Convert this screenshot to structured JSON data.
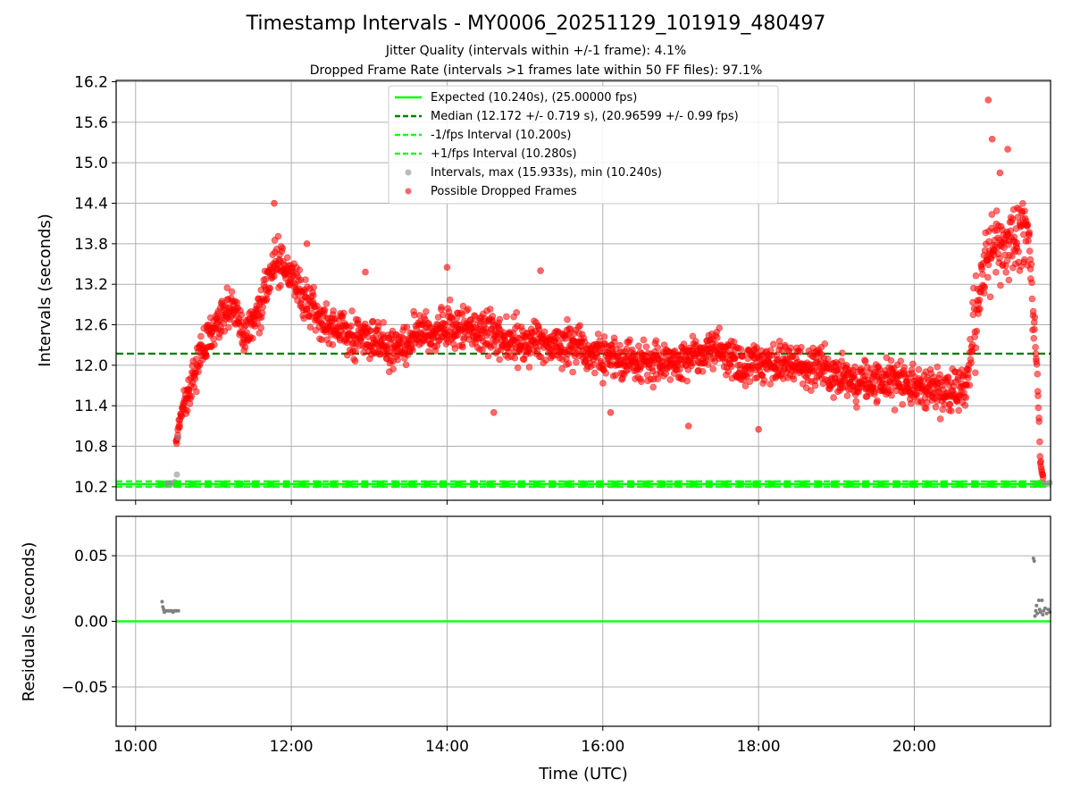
{
  "chart_data": [
    {
      "type": "scatter",
      "title": "Timestamp Intervals - MY0006_20251129_101919_480497",
      "subtitle_lines": [
        "Jitter Quality (intervals within +/-1 frame): 4.1%",
        "Dropped Frame Rate (intervals >1 frames late within 50 FF files): 97.1%"
      ],
      "ylabel": "Intervals (seconds)",
      "ylim": [
        10.0,
        16.22
      ],
      "xlim_hours": [
        9.75,
        21.75
      ],
      "yticks": [
        10.2,
        10.8,
        11.4,
        12.0,
        12.6,
        13.2,
        13.8,
        14.4,
        15.0,
        15.6,
        16.2
      ],
      "ytick_labels": [
        "10.2",
        "10.8",
        "11.4",
        "12.0",
        "12.6",
        "13.2",
        "13.8",
        "14.4",
        "15.0",
        "15.6",
        "16.2"
      ],
      "grid": true,
      "reference_lines": {
        "expected": 10.24,
        "median": 12.172,
        "minus_fps": 10.2,
        "plus_fps": 10.28
      },
      "intervals_normal": [
        {
          "x": 10.33,
          "y": 10.24
        },
        {
          "x": 10.38,
          "y": 10.24
        },
        {
          "x": 10.42,
          "y": 10.25
        },
        {
          "x": 10.46,
          "y": 10.25
        },
        {
          "x": 10.5,
          "y": 10.27
        },
        {
          "x": 10.53,
          "y": 10.38
        },
        {
          "x": 10.55,
          "y": 10.93
        },
        {
          "x": 21.55,
          "y": 10.24
        },
        {
          "x": 21.6,
          "y": 10.26
        },
        {
          "x": 21.65,
          "y": 10.25
        },
        {
          "x": 21.7,
          "y": 10.25
        },
        {
          "x": 21.74,
          "y": 10.26
        }
      ],
      "dropped_trend": [
        {
          "x": 10.52,
          "y": 10.8
        },
        {
          "x": 10.6,
          "y": 11.4
        },
        {
          "x": 10.75,
          "y": 11.9
        },
        {
          "x": 10.9,
          "y": 12.3
        },
        {
          "x": 11.1,
          "y": 12.7
        },
        {
          "x": 11.25,
          "y": 12.85
        },
        {
          "x": 11.4,
          "y": 12.45
        },
        {
          "x": 11.6,
          "y": 12.8
        },
        {
          "x": 11.8,
          "y": 13.6
        },
        {
          "x": 12.0,
          "y": 13.3
        },
        {
          "x": 12.2,
          "y": 12.95
        },
        {
          "x": 12.4,
          "y": 12.6
        },
        {
          "x": 12.7,
          "y": 12.5
        },
        {
          "x": 13.0,
          "y": 12.35
        },
        {
          "x": 13.3,
          "y": 12.2
        },
        {
          "x": 13.6,
          "y": 12.45
        },
        {
          "x": 14.0,
          "y": 12.55
        },
        {
          "x": 14.5,
          "y": 12.5
        },
        {
          "x": 15.0,
          "y": 12.35
        },
        {
          "x": 15.5,
          "y": 12.3
        },
        {
          "x": 16.0,
          "y": 12.15
        },
        {
          "x": 16.5,
          "y": 12.05
        },
        {
          "x": 17.0,
          "y": 12.05
        },
        {
          "x": 17.4,
          "y": 12.25
        },
        {
          "x": 17.8,
          "y": 12.0
        },
        {
          "x": 18.3,
          "y": 12.05
        },
        {
          "x": 18.8,
          "y": 11.95
        },
        {
          "x": 19.2,
          "y": 11.75
        },
        {
          "x": 19.7,
          "y": 11.75
        },
        {
          "x": 20.2,
          "y": 11.65
        },
        {
          "x": 20.65,
          "y": 11.6
        },
        {
          "x": 20.8,
          "y": 12.8
        },
        {
          "x": 20.95,
          "y": 13.7
        },
        {
          "x": 21.15,
          "y": 13.7
        },
        {
          "x": 21.3,
          "y": 13.9
        },
        {
          "x": 21.45,
          "y": 14.0
        },
        {
          "x": 21.52,
          "y": 13.0
        },
        {
          "x": 21.58,
          "y": 11.8
        },
        {
          "x": 21.62,
          "y": 10.6
        },
        {
          "x": 21.66,
          "y": 10.25
        }
      ],
      "dropped_outliers": [
        {
          "x": 11.78,
          "y": 14.4
        },
        {
          "x": 12.2,
          "y": 13.8
        },
        {
          "x": 12.95,
          "y": 13.38
        },
        {
          "x": 14.0,
          "y": 13.45
        },
        {
          "x": 15.2,
          "y": 13.4
        },
        {
          "x": 14.6,
          "y": 11.3
        },
        {
          "x": 16.1,
          "y": 11.3
        },
        {
          "x": 17.1,
          "y": 11.1
        },
        {
          "x": 18.0,
          "y": 11.05
        },
        {
          "x": 20.95,
          "y": 15.93
        },
        {
          "x": 21.0,
          "y": 15.35
        },
        {
          "x": 21.2,
          "y": 15.2
        },
        {
          "x": 21.1,
          "y": 14.85
        }
      ],
      "legend": {
        "placement": "upper-center",
        "entries": [
          "Expected (10.240s), (25.00000 fps)",
          "Median (12.172 +/- 0.719 s), (20.96599 +/- 0.99 fps)",
          "-1/fps Interval (10.200s)",
          "+1/fps Interval (10.280s)",
          "Intervals, max (15.933s), min (10.240s)",
          "Possible Dropped Frames"
        ]
      }
    },
    {
      "type": "scatter",
      "ylabel": "Residuals (seconds)",
      "xlabel": "Time (UTC)",
      "ylim": [
        -0.08,
        0.08
      ],
      "xlim_hours": [
        9.75,
        21.75
      ],
      "yticks": [
        -0.05,
        0.0,
        0.05
      ],
      "ytick_labels": [
        "−0.05",
        "0.00",
        "0.05"
      ],
      "xticks_hours": [
        10,
        12,
        14,
        16,
        18,
        20
      ],
      "xtick_labels": [
        "10:00",
        "12:00",
        "14:00",
        "16:00",
        "18:00",
        "20:00"
      ],
      "grid": true,
      "zero_line": 0.0,
      "residuals": [
        {
          "x": 10.34,
          "y": 0.015
        },
        {
          "x": 10.35,
          "y": 0.011
        },
        {
          "x": 10.36,
          "y": 0.009
        },
        {
          "x": 10.37,
          "y": 0.007
        },
        {
          "x": 10.38,
          "y": 0.008
        },
        {
          "x": 10.4,
          "y": 0.008
        },
        {
          "x": 10.42,
          "y": 0.008
        },
        {
          "x": 10.44,
          "y": 0.008
        },
        {
          "x": 10.46,
          "y": 0.008
        },
        {
          "x": 10.48,
          "y": 0.007
        },
        {
          "x": 10.5,
          "y": 0.008
        },
        {
          "x": 10.52,
          "y": 0.008
        },
        {
          "x": 10.55,
          "y": 0.008
        },
        {
          "x": 21.53,
          "y": 0.048
        },
        {
          "x": 21.54,
          "y": 0.046
        },
        {
          "x": 21.55,
          "y": 0.004
        },
        {
          "x": 21.56,
          "y": 0.008
        },
        {
          "x": 21.57,
          "y": 0.012
        },
        {
          "x": 21.58,
          "y": 0.006
        },
        {
          "x": 21.6,
          "y": 0.016
        },
        {
          "x": 21.61,
          "y": 0.009
        },
        {
          "x": 21.62,
          "y": 0.007
        },
        {
          "x": 21.64,
          "y": 0.016
        },
        {
          "x": 21.65,
          "y": 0.005
        },
        {
          "x": 21.66,
          "y": 0.008
        },
        {
          "x": 21.68,
          "y": 0.01
        },
        {
          "x": 21.7,
          "y": 0.006
        },
        {
          "x": 21.72,
          "y": 0.009
        },
        {
          "x": 21.74,
          "y": 0.007
        }
      ]
    }
  ],
  "colors": {
    "expected": "#00ff00",
    "median": "#008000",
    "fps_bounds": "#1aff1a",
    "intervals": "#8c8c8c",
    "dropped": "#ff0000",
    "residuals": "#808080",
    "residual_zero": "#1aff1a",
    "grid": "#b0b0b0"
  }
}
